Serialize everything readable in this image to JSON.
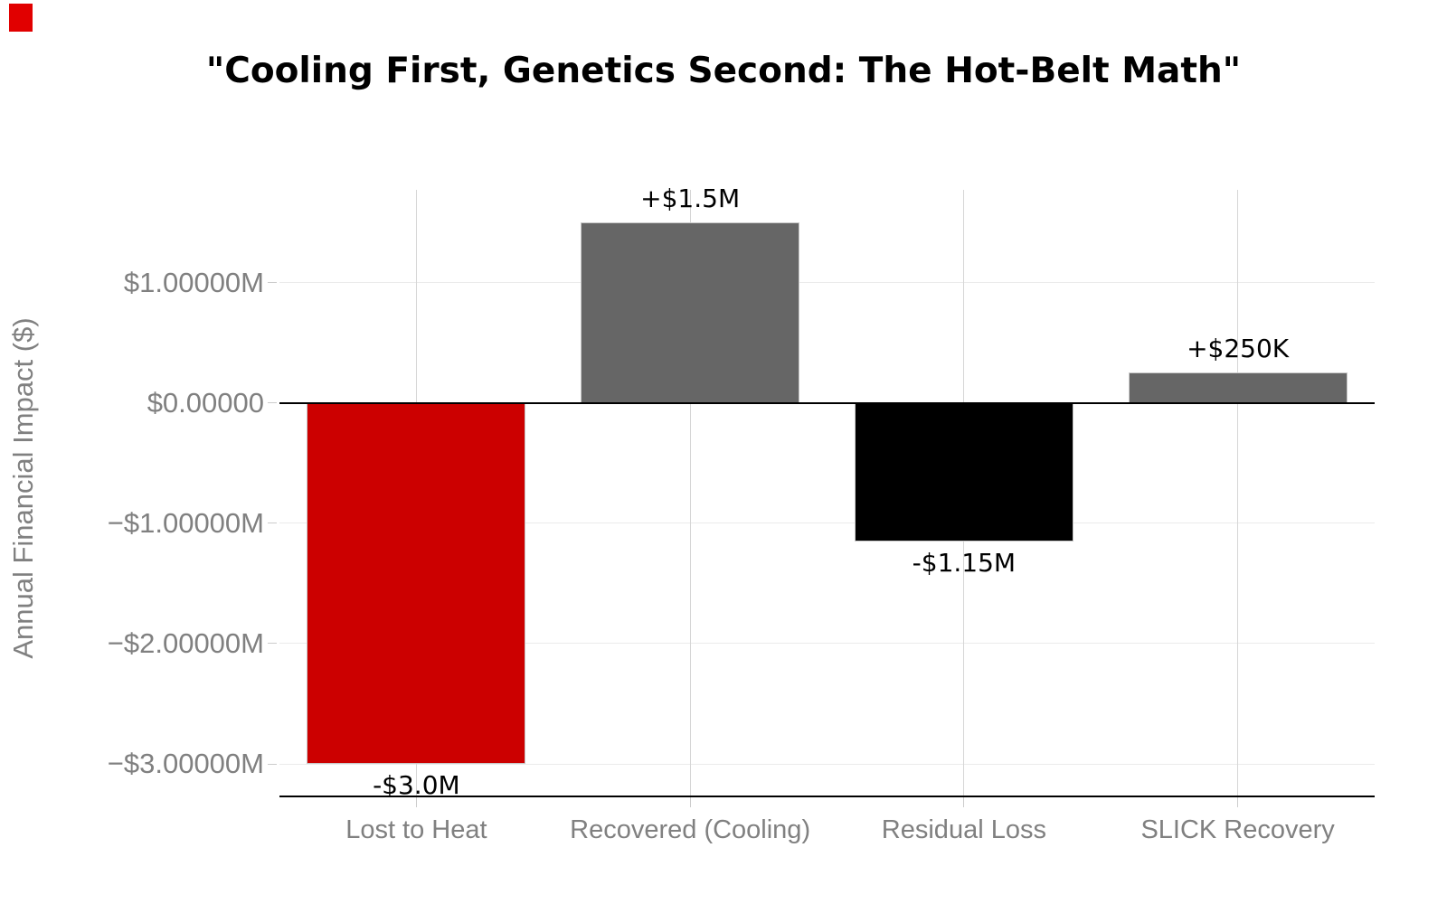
{
  "title": "\"Cooling First, Genetics Second: The Hot-Belt Math\"",
  "decorations": {
    "corner_marker_color": "#e10000"
  },
  "chart_data": {
    "type": "bar",
    "title": "\"Cooling First, Genetics Second: The Hot-Belt Math\"",
    "xlabel": "",
    "ylabel": "Annual Financial Impact ($)",
    "categories": [
      "Lost to Heat",
      "Recovered (Cooling)",
      "Residual Loss",
      "SLICK Recovery"
    ],
    "values": [
      -3000000,
      1500000,
      -1150000,
      250000
    ],
    "bar_labels": [
      "-$3.0M",
      "+$1.5M",
      "-$1.15M",
      "+$250K"
    ],
    "bar_colors": [
      "#cc0000",
      "#666666",
      "#000000",
      "#666666"
    ],
    "yticks": [
      {
        "value": 1000000,
        "label": "$1.00000M"
      },
      {
        "value": 0,
        "label": "$0.00000"
      },
      {
        "value": -1000000,
        "label": "−$1.00000M"
      },
      {
        "value": -2000000,
        "label": "−$2.00000M"
      },
      {
        "value": -3000000,
        "label": "−$3.00000M"
      }
    ],
    "ylim": [
      -3270000,
      1770000
    ],
    "grid": true,
    "zero_line": true,
    "legend": null,
    "colors": {
      "loss": "#cc0000",
      "gain": "#666666",
      "residual": "#000000",
      "axis_text": "#808080",
      "grid_vertical": "#d6d6d6",
      "grid_horizontal": "#ebebeb",
      "spine": "#000000"
    }
  }
}
